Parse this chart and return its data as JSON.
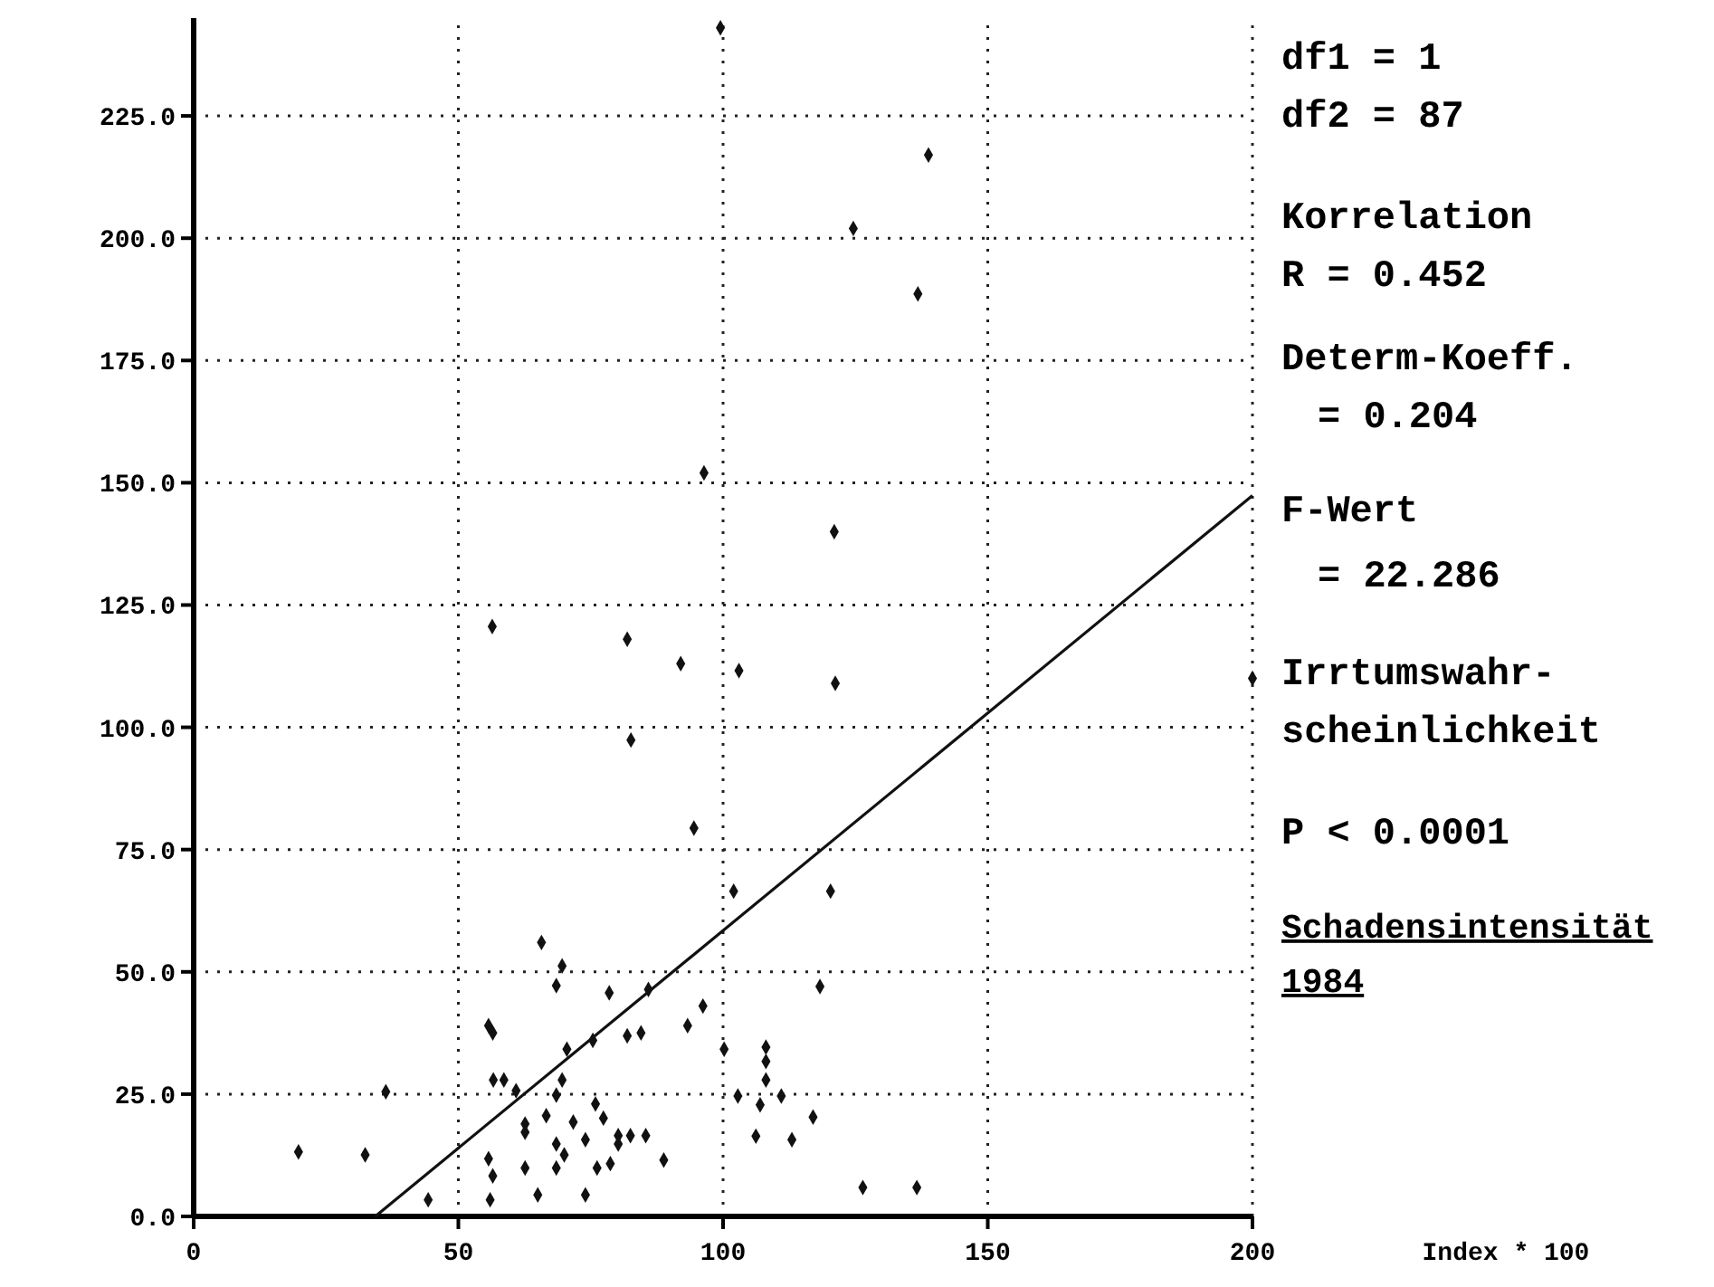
{
  "chart_data": {
    "type": "scatter",
    "ylabel": "Schadensintensität 1984",
    "xlim": [
      0,
      200
    ],
    "ylim": [
      0,
      245
    ],
    "xticks": [
      0,
      50,
      100,
      150,
      200
    ],
    "yticks": [
      {
        "value": 0,
        "label": "0.0"
      },
      {
        "value": 25,
        "label": "25.0"
      },
      {
        "value": 50,
        "label": "50.0"
      },
      {
        "value": 75,
        "label": "75.0"
      },
      {
        "value": 100,
        "label": "100.0"
      },
      {
        "value": 125,
        "label": "125.0"
      },
      {
        "value": 150,
        "label": "150.0"
      },
      {
        "value": 175,
        "label": "175.0"
      },
      {
        "value": 200,
        "label": "200.0"
      },
      {
        "value": 225,
        "label": "225.0"
      }
    ],
    "grid": true,
    "series": [
      {
        "color": "#111111",
        "marker": "diamond",
        "x": [
          99.5,
          138.8,
          124.6,
          136.8,
          96.4,
          121,
          56.4,
          81.9,
          92,
          103,
          121.2,
          200,
          82.6,
          94.5,
          102,
          120.3,
          96.2,
          93.3,
          118.3,
          100.2,
          108.1,
          108.1,
          108.1,
          102.8,
          111,
          107,
          117,
          106.2,
          113,
          126.4,
          136.6,
          19.8,
          32.4,
          36.3,
          44.3,
          65.7,
          69.6,
          68.5,
          78.5,
          85.9,
          81.9,
          84.5,
          75.4,
          70.5,
          55.7,
          56.5,
          56.6,
          58.6,
          60.9,
          69.6,
          68.5,
          75.9,
          77.4,
          66.6,
          71.7,
          62.6,
          62.6,
          74,
          80.2,
          82.5,
          85.4,
          80.2,
          68.5,
          70,
          76.2,
          78.7,
          88.8,
          55.7,
          56.5,
          62.6,
          68.5,
          56,
          65,
          74
        ],
        "values": [
          243,
          217,
          202,
          188.6,
          152,
          140,
          120.6,
          118,
          113,
          111.6,
          109,
          110,
          97.4,
          79.4,
          66.5,
          66.5,
          43,
          39,
          47,
          34.2,
          34.6,
          31.7,
          27.9,
          24.6,
          24.6,
          22.8,
          20.3,
          16.4,
          15.7,
          5.9,
          5.9,
          13.2,
          12.6,
          25.5,
          3.4,
          56,
          51.2,
          47.2,
          45.7,
          46.4,
          36.9,
          37.5,
          36,
          34.2,
          39,
          37.5,
          27.9,
          27.9,
          25.7,
          27.9,
          24.8,
          23,
          20.1,
          20.6,
          19.3,
          18.9,
          17.2,
          15.7,
          16.5,
          16.5,
          16.5,
          14.8,
          14.8,
          12.6,
          9.9,
          10.8,
          11.5,
          11.8,
          8.3,
          9.9,
          9.9,
          3.4,
          4.4,
          4.4
        ]
      },
      {
        "type": "line",
        "color": "#111111",
        "x": [
          34.3,
          200
        ],
        "values": [
          0,
          147.4
        ]
      }
    ],
    "annotations": [
      "df1 = 1",
      "df2 = 87",
      "Korrelation",
      "R = 0.452",
      "Determ-Koeff.",
      "= 0.204",
      "F-Wert",
      "= 22.286",
      "Irrtumswahr-",
      "scheinlichkeit",
      "P < 0.0001",
      "Index * 100"
    ]
  }
}
